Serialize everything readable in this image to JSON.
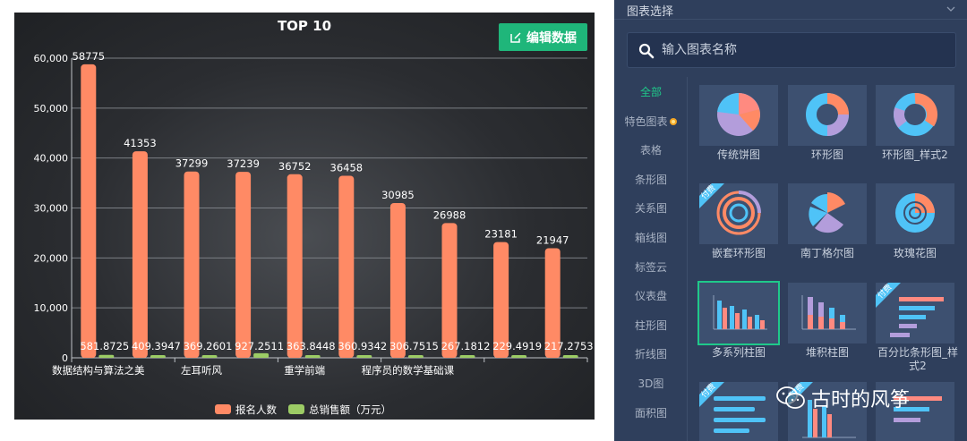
{
  "chart_panel": {
    "edit_button_label": "编辑数据"
  },
  "chart_data": {
    "type": "bar",
    "title": "TOP 10",
    "categories": [
      "数据结构与算法之美",
      "",
      "左耳听风",
      "",
      "重学前端",
      "",
      "程序员的数学基础课",
      "",
      "",
      ""
    ],
    "x_tick_labels": [
      "数据结构与算法之美",
      "左耳听风",
      "重学前端",
      "程序员的数学基础课"
    ],
    "series": [
      {
        "name": "报名人数",
        "color": "#ff8a65",
        "values": [
          58775,
          41353,
          37299,
          37239,
          36752,
          36458,
          30985,
          26988,
          23181,
          21947
        ],
        "labels": [
          "58775",
          "41353",
          "37299",
          "37239",
          "36752",
          "36458",
          "30985",
          "26988",
          "23181",
          "21947"
        ]
      },
      {
        "name": "总销售额（万元）",
        "color": "#9ccc65",
        "values": [
          581.8725,
          409.3947,
          369.2601,
          927.2511,
          363.8448,
          360.9342,
          306.7515,
          267.1812,
          229.4919,
          217.2753
        ],
        "labels": [
          "581.8725",
          "409.3947",
          "369.2601",
          "927.2511",
          "363.8448",
          "360.9342",
          "306.7515",
          "267.1812",
          "229.4919",
          "217.2753"
        ]
      }
    ],
    "y_ticks": [
      "0",
      "10,000",
      "20,000",
      "30,000",
      "40,000",
      "50,000",
      "60,000"
    ],
    "ylim": [
      0,
      60000
    ],
    "grid": true,
    "legend": "bottom-center"
  },
  "right_panel": {
    "title": "图表选择",
    "search": {
      "placeholder": "输入图表名称"
    },
    "categories": [
      "全部",
      "特色图表",
      "表格",
      "条形图",
      "关系图",
      "箱线图",
      "标签云",
      "仪表盘",
      "柱形图",
      "折线图",
      "3D图",
      "面积图"
    ],
    "cards": [
      {
        "label": "传统饼图",
        "kind": "pie",
        "paid": false
      },
      {
        "label": "环形图",
        "kind": "donut",
        "paid": false
      },
      {
        "label": "环形图_样式2",
        "kind": "donut2",
        "paid": false
      },
      {
        "label": "嵌套环形图",
        "kind": "nested",
        "paid": true
      },
      {
        "label": "南丁格尔图",
        "kind": "nightingale",
        "paid": false
      },
      {
        "label": "玫瑰花图",
        "kind": "rose",
        "paid": false
      },
      {
        "label": "多系列柱图",
        "kind": "multibar",
        "paid": false
      },
      {
        "label": "堆积柱图",
        "kind": "stackbar",
        "paid": false
      },
      {
        "label": "百分比条形图_样式2",
        "kind": "pctbar",
        "paid": true
      },
      {
        "label": "",
        "kind": "hbar",
        "paid": true
      },
      {
        "label": "",
        "kind": "multibar2",
        "paid": true
      },
      {
        "label": "",
        "kind": "hbar2",
        "paid": false
      }
    ],
    "paid_badge": "付费",
    "selected_card": "多系列柱图"
  },
  "watermark": {
    "text": "古时的风筝"
  }
}
